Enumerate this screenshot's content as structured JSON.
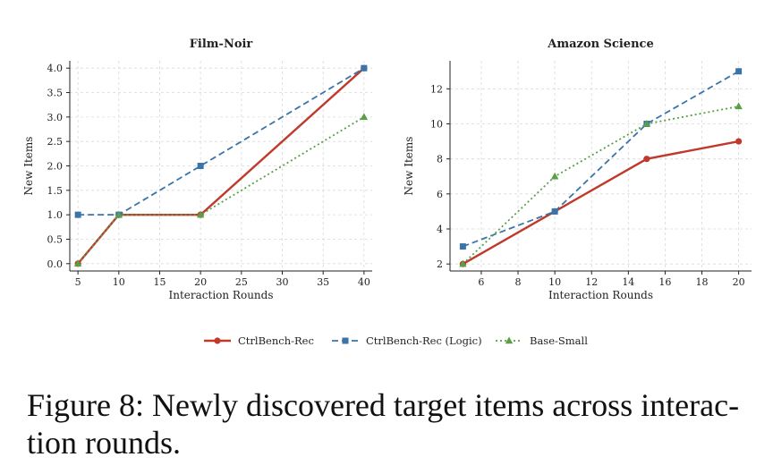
{
  "caption": {
    "line1": "Figure 8: Newly discovered target items across interac-",
    "line2": "tion rounds."
  },
  "series_styles": [
    {
      "name": "CtrlBench-Rec",
      "color": "#c0392b",
      "dash": "",
      "marker": "circle"
    },
    {
      "name": "CtrlBench-Rec (Logic)",
      "color": "#3b74a8",
      "dash": "7,4",
      "marker": "square"
    },
    {
      "name": "Base-Small",
      "color": "#5a9e47",
      "dash": "2,3",
      "marker": "triangle"
    }
  ],
  "chart_data": [
    {
      "type": "line",
      "title": "Film-Noir",
      "xlabel": "Interaction Rounds",
      "ylabel": "New Items",
      "xlim": [
        4,
        41
      ],
      "ylim": [
        -0.15,
        4.15
      ],
      "xticks": [
        5,
        10,
        15,
        20,
        25,
        30,
        35,
        40
      ],
      "yticks": [
        0.0,
        0.5,
        1.0,
        1.5,
        2.0,
        2.5,
        3.0,
        3.5,
        4.0
      ],
      "ytick_decimals": 1,
      "grid": true,
      "x": [
        5,
        10,
        20,
        40
      ],
      "series": [
        {
          "name": "CtrlBench-Rec",
          "values": [
            0,
            1,
            1,
            4
          ]
        },
        {
          "name": "CtrlBench-Rec (Logic)",
          "values": [
            1,
            1,
            2,
            4
          ]
        },
        {
          "name": "Base-Small",
          "values": [
            0,
            1,
            1,
            3
          ]
        }
      ]
    },
    {
      "type": "line",
      "title": "Amazon Science",
      "xlabel": "Interaction Rounds",
      "ylabel": "New Items",
      "xlim": [
        4.3,
        20.7
      ],
      "ylim": [
        1.6,
        13.6
      ],
      "xticks": [
        6,
        8,
        10,
        12,
        14,
        16,
        18,
        20
      ],
      "yticks": [
        2,
        4,
        6,
        8,
        10,
        12
      ],
      "ytick_decimals": 0,
      "grid": true,
      "x": [
        5,
        10,
        15,
        20
      ],
      "series": [
        {
          "name": "CtrlBench-Rec",
          "values": [
            2,
            5,
            8,
            9
          ]
        },
        {
          "name": "CtrlBench-Rec (Logic)",
          "values": [
            3,
            5,
            10,
            13
          ]
        },
        {
          "name": "Base-Small",
          "values": [
            2,
            7,
            10,
            11
          ]
        }
      ]
    }
  ],
  "legend": {
    "placement": "bottom-center",
    "items": [
      "CtrlBench-Rec",
      "CtrlBench-Rec (Logic)",
      "Base-Small"
    ]
  }
}
